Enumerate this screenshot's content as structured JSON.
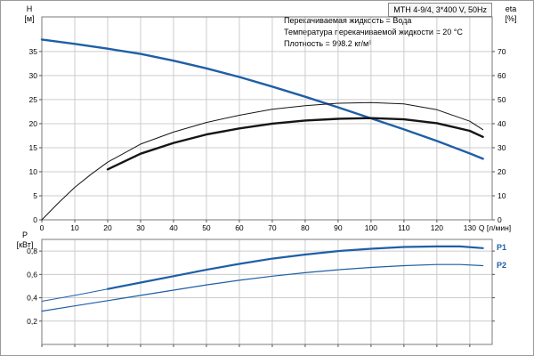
{
  "accent_blue": "#1f5fa6",
  "chart_data": [
    {
      "type": "line",
      "title": "MTH 4-9/4, 3*400 V, 50Hz",
      "xlabel": "Q [л/мин]",
      "ylabel_left": "H",
      "ylabel_left_unit": "[м]",
      "ylabel_right": "eta",
      "ylabel_right_unit": "[%]",
      "xlim": [
        0,
        136.8
      ],
      "ylim_left": [
        0,
        42.2
      ],
      "ylim_right": [
        0,
        84.4
      ],
      "grid": true,
      "x_ticks": [
        0,
        10,
        20,
        30,
        40,
        50,
        60,
        70,
        80,
        90,
        100,
        110,
        120,
        130
      ],
      "y_ticks_left": [
        0,
        5,
        10,
        15,
        20,
        25,
        30,
        35
      ],
      "y_ticks_right": [
        0,
        10,
        20,
        30,
        40,
        50,
        60,
        70
      ],
      "annotations": [
        "Перекачиваемая жидкость = Вода",
        "Температура перекачиваемой жидкости = 20 °C",
        "Плотность = 998.2 кг/м³"
      ],
      "series": [
        {
          "name": "H",
          "axis": "left",
          "color": "#1f5fa6",
          "width": 2.4,
          "points": [
            [
              0,
              37.5
            ],
            [
              10,
              36.6
            ],
            [
              20,
              35.6
            ],
            [
              30,
              34.5
            ],
            [
              40,
              33.1
            ],
            [
              50,
              31.5
            ],
            [
              60,
              29.7
            ],
            [
              70,
              27.7
            ],
            [
              80,
              25.6
            ],
            [
              90,
              23.4
            ],
            [
              100,
              21.1
            ],
            [
              110,
              18.8
            ],
            [
              120,
              16.4
            ],
            [
              130,
              13.8
            ],
            [
              134,
              12.7
            ]
          ]
        },
        {
          "name": "eta-pump",
          "axis": "right",
          "color": "#151515",
          "width": 1,
          "points": [
            [
              0,
              0
            ],
            [
              5,
              7
            ],
            [
              10,
              13.5
            ],
            [
              15,
              19
            ],
            [
              20,
              24
            ],
            [
              30,
              31.5
            ],
            [
              40,
              36.5
            ],
            [
              50,
              40.5
            ],
            [
              60,
              43.5
            ],
            [
              70,
              46
            ],
            [
              80,
              47.5
            ],
            [
              90,
              48.5
            ],
            [
              100,
              48.8
            ],
            [
              110,
              48.2
            ],
            [
              120,
              45.8
            ],
            [
              130,
              41
            ],
            [
              134,
              37.5
            ]
          ]
        },
        {
          "name": "eta-pump-motor",
          "axis": "right",
          "color": "#151515",
          "width": 2.4,
          "points": [
            [
              20,
              21
            ],
            [
              30,
              27.5
            ],
            [
              40,
              32
            ],
            [
              50,
              35.5
            ],
            [
              60,
              38
            ],
            [
              70,
              40
            ],
            [
              80,
              41.3
            ],
            [
              90,
              42
            ],
            [
              100,
              42.3
            ],
            [
              110,
              41.8
            ],
            [
              120,
              40.2
            ],
            [
              130,
              37
            ],
            [
              134,
              34.5
            ]
          ]
        }
      ]
    },
    {
      "type": "line",
      "ylabel_left": "P",
      "ylabel_left_unit": "[кВт]",
      "xlim": [
        0,
        136.8
      ],
      "ylim_left": [
        0,
        0.9
      ],
      "grid": true,
      "x_ticks": [
        0,
        10,
        20,
        30,
        40,
        50,
        60,
        70,
        80,
        90,
        100,
        110,
        120,
        130
      ],
      "y_ticks_left": [
        0.2,
        0.4,
        0.6,
        0.8
      ],
      "y_tick_labels_left": [
        "0,2",
        "0,4",
        "0,6",
        "0,8"
      ],
      "series": [
        {
          "name": "P1",
          "axis": "left",
          "color": "#1f5fa6",
          "width": 2.2,
          "thick_from": 20,
          "points": [
            [
              0,
              0.37
            ],
            [
              10,
              0.42
            ],
            [
              20,
              0.475
            ],
            [
              30,
              0.53
            ],
            [
              40,
              0.585
            ],
            [
              50,
              0.64
            ],
            [
              60,
              0.69
            ],
            [
              70,
              0.735
            ],
            [
              80,
              0.77
            ],
            [
              90,
              0.8
            ],
            [
              100,
              0.82
            ],
            [
              110,
              0.835
            ],
            [
              120,
              0.84
            ],
            [
              127,
              0.84
            ],
            [
              134,
              0.825
            ]
          ]
        },
        {
          "name": "P2",
          "axis": "left",
          "color": "#1f5fa6",
          "width": 1.2,
          "points": [
            [
              0,
              0.285
            ],
            [
              10,
              0.33
            ],
            [
              20,
              0.375
            ],
            [
              30,
              0.42
            ],
            [
              40,
              0.465
            ],
            [
              50,
              0.51
            ],
            [
              60,
              0.55
            ],
            [
              70,
              0.585
            ],
            [
              80,
              0.615
            ],
            [
              90,
              0.64
            ],
            [
              100,
              0.66
            ],
            [
              110,
              0.675
            ],
            [
              120,
              0.685
            ],
            [
              127,
              0.685
            ],
            [
              134,
              0.675
            ]
          ]
        }
      ]
    }
  ]
}
